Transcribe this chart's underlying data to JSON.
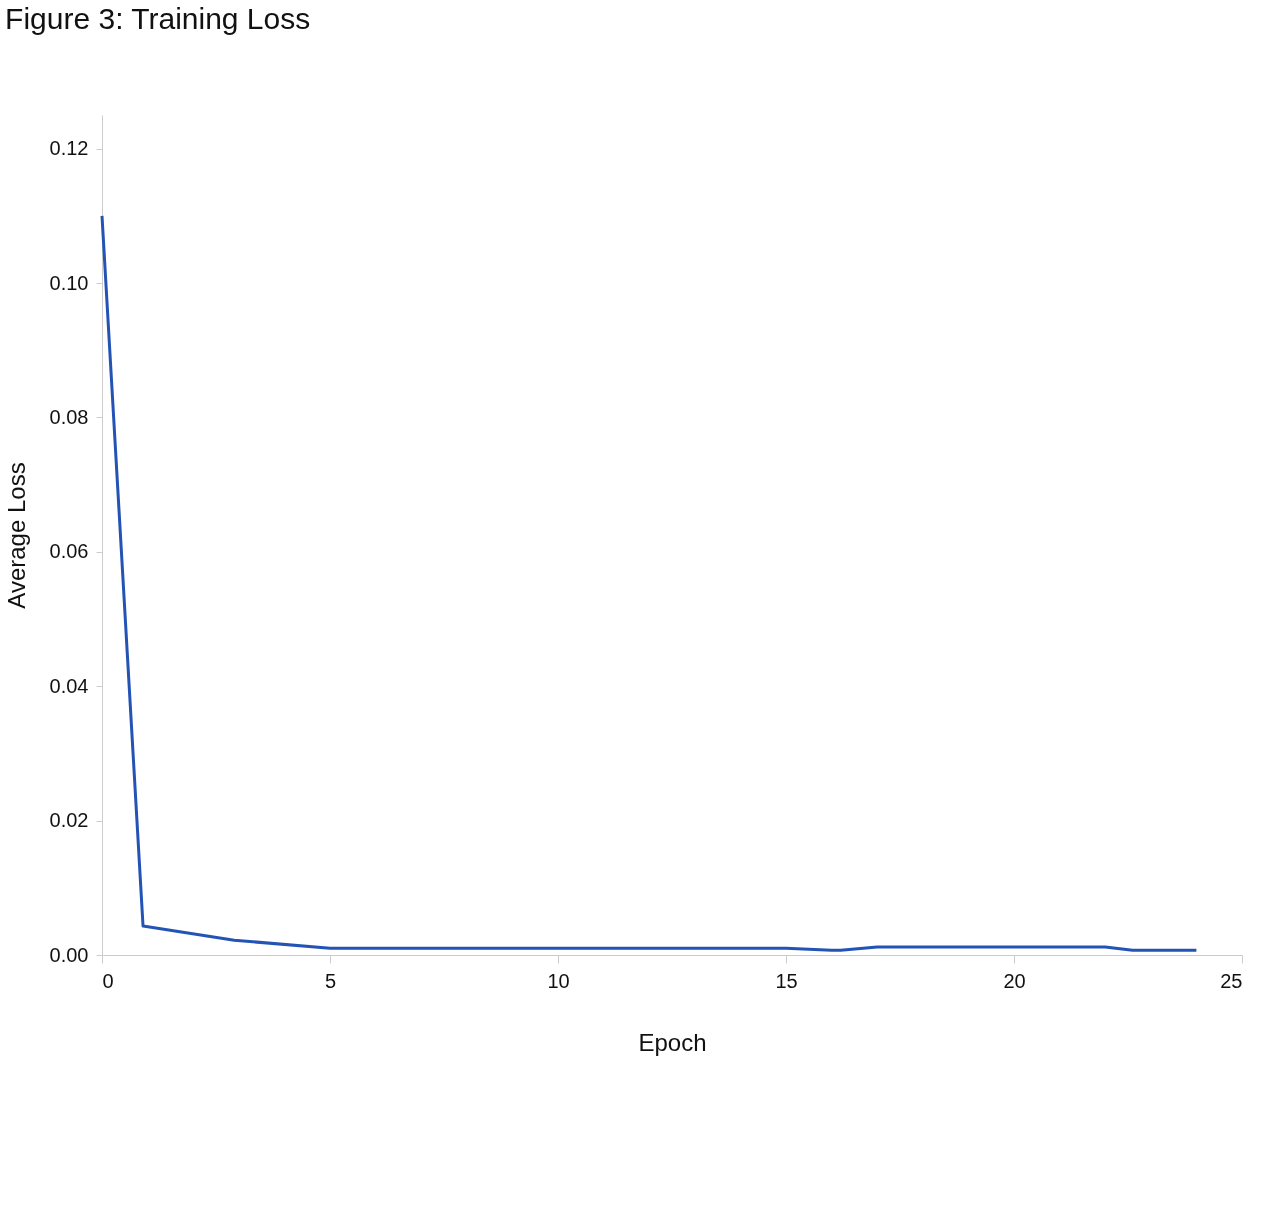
{
  "chart_data": {
    "type": "line",
    "title": "Figure 3: Training Loss",
    "xlabel": "Epoch",
    "ylabel": "Average Loss",
    "x": [
      0,
      0.9,
      2.9,
      5,
      15,
      16,
      16.2,
      17,
      22,
      22.6,
      24
    ],
    "series": [
      {
        "color": "#2354b5",
        "values": [
          0.11,
          0.0043,
          0.0022,
          0.001,
          0.001,
          0.0007,
          0.0007,
          0.0012,
          0.0012,
          0.0007,
          0.0007
        ]
      }
    ],
    "xlim": [
      0,
      25
    ],
    "xticks": [
      0,
      5,
      10,
      15,
      20,
      25
    ],
    "ylim": [
      0,
      0.125
    ],
    "yticks": [
      {
        "value": 0,
        "label": "0.00"
      },
      {
        "value": 0.02,
        "label": "0.02"
      },
      {
        "value": 0.04,
        "label": "0.04"
      },
      {
        "value": 0.06,
        "label": "0.06"
      },
      {
        "value": 0.08,
        "label": "0.08"
      },
      {
        "value": 0.1,
        "label": "0.10"
      },
      {
        "value": 0.12,
        "label": "0.12"
      }
    ],
    "grid": false,
    "marker": "none",
    "line_style": "solid"
  }
}
